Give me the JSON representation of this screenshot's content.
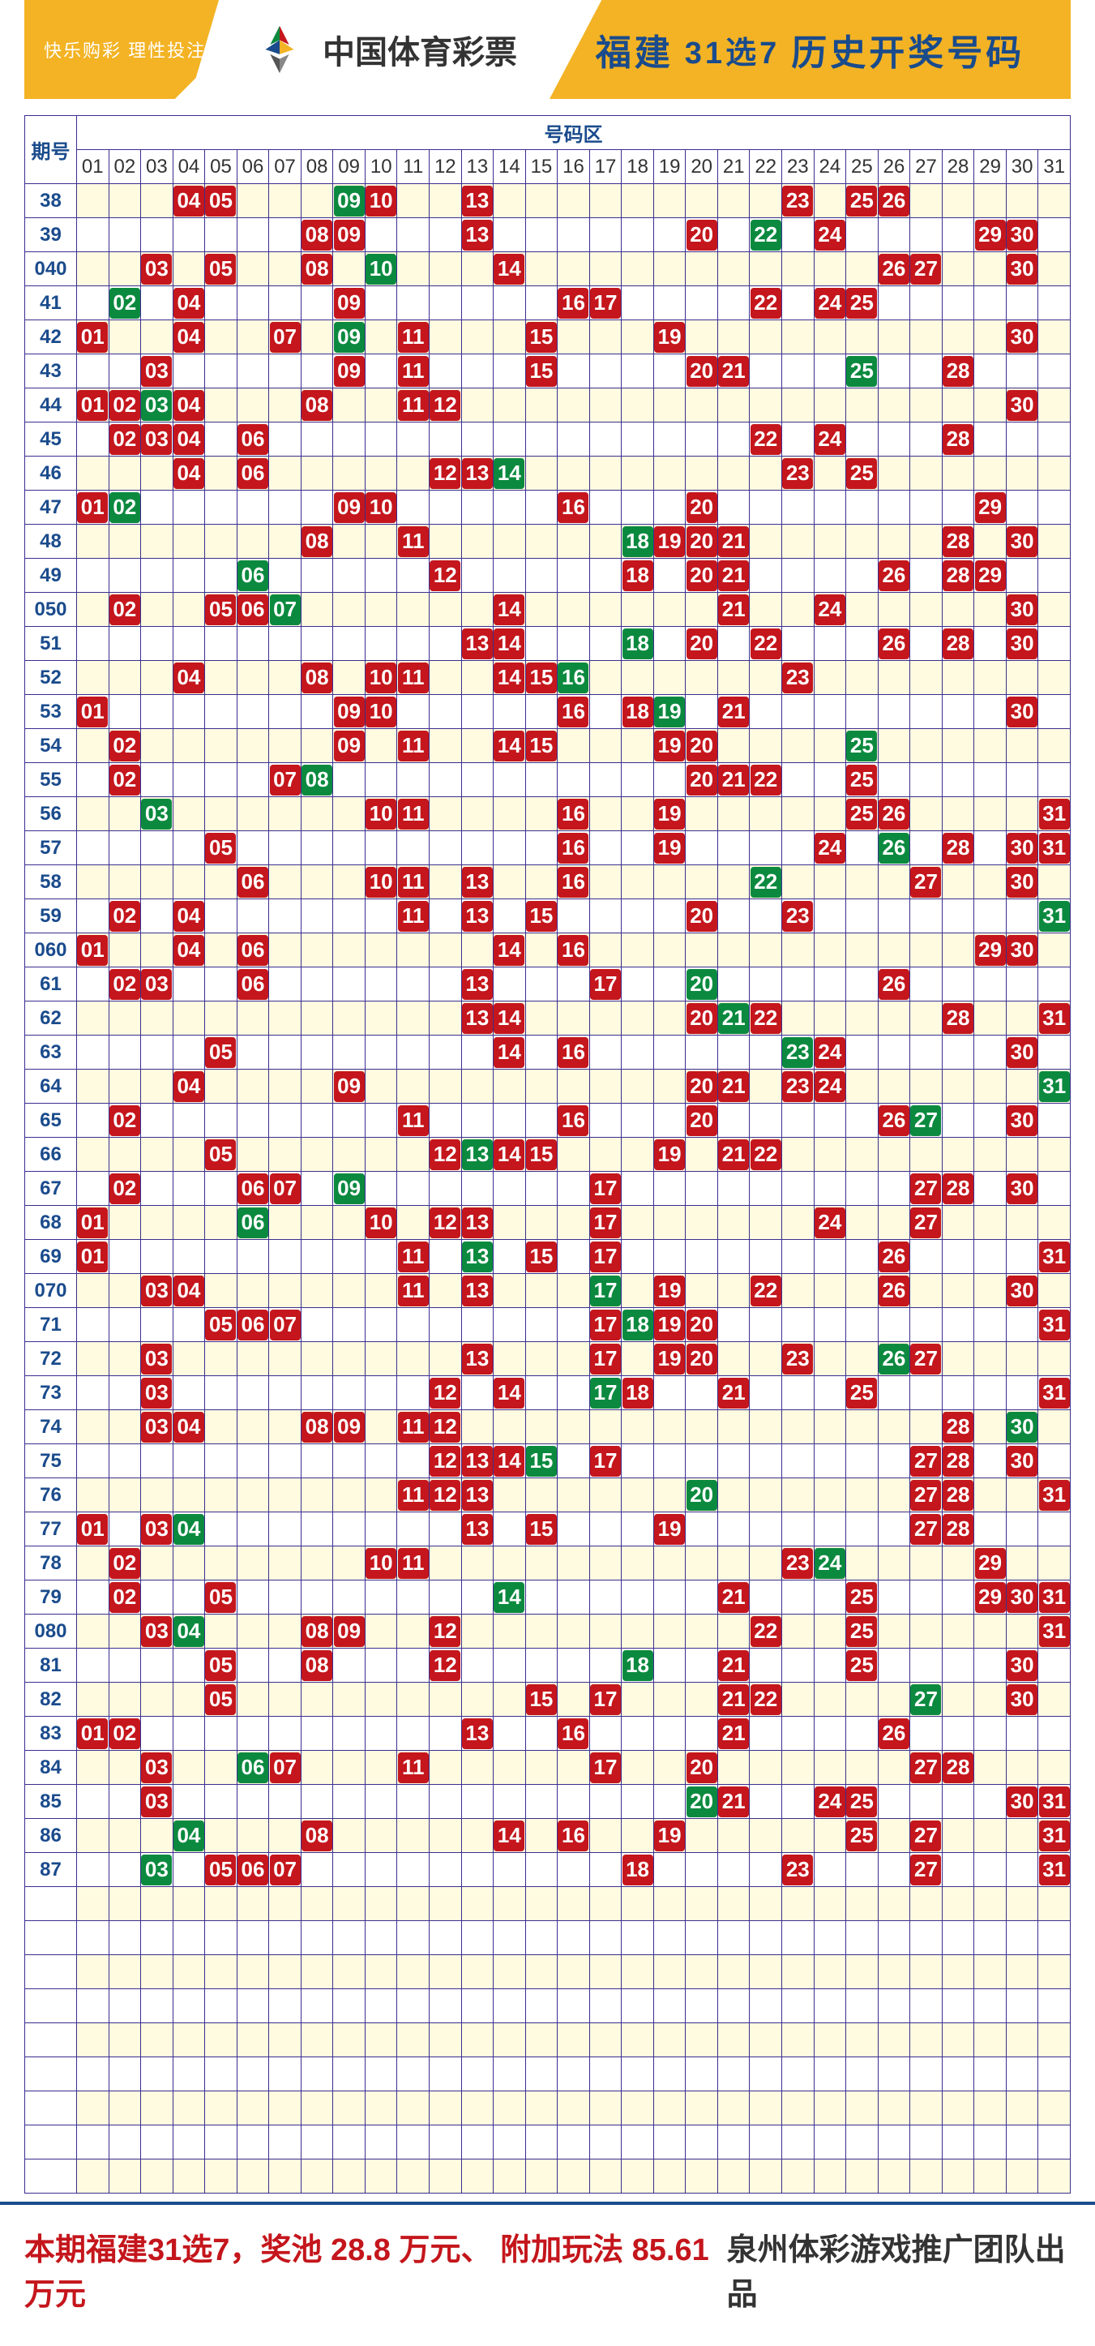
{
  "header": {
    "motto": "快乐购彩 理性投注",
    "brand": "中国体育彩票",
    "province": "福建",
    "game": "31选7",
    "title": "历史开奖号码"
  },
  "table": {
    "band_label": "号码区",
    "period_label": "期号",
    "num_columns": 31,
    "empty_tail_rows": 9,
    "colors": {
      "red": "#c4161c",
      "green": "#0b8a3f",
      "grid_border": "#3a2e8f",
      "row_odd_bg": "#fffbe0",
      "row_even_bg": "#ffffff",
      "period_text": "#1a4b8c",
      "header_bg": "#f3b324"
    },
    "rows": [
      {
        "period": "38",
        "red": [
          4,
          5,
          10,
          13,
          23,
          25,
          26
        ],
        "green": [
          9
        ]
      },
      {
        "period": "39",
        "red": [
          8,
          9,
          13,
          20,
          24,
          29,
          30
        ],
        "green": [
          22
        ]
      },
      {
        "period": "040",
        "red": [
          3,
          5,
          8,
          14,
          26,
          27,
          30
        ],
        "green": [
          10
        ]
      },
      {
        "period": "41",
        "red": [
          4,
          9,
          16,
          17,
          22,
          24,
          25
        ],
        "green": [
          2
        ]
      },
      {
        "period": "42",
        "red": [
          1,
          4,
          7,
          11,
          15,
          19,
          30
        ],
        "green": [
          9
        ]
      },
      {
        "period": "43",
        "red": [
          3,
          9,
          11,
          15,
          20,
          21,
          28
        ],
        "green": [
          25
        ]
      },
      {
        "period": "44",
        "red": [
          1,
          2,
          4,
          8,
          11,
          12,
          30
        ],
        "green": [
          3
        ]
      },
      {
        "period": "45",
        "red": [
          2,
          3,
          4,
          6,
          22,
          24,
          28
        ],
        "green": []
      },
      {
        "period": "46",
        "red": [
          4,
          6,
          12,
          13,
          23,
          25
        ],
        "green": [
          14
        ]
      },
      {
        "period": "47",
        "red": [
          1,
          9,
          10,
          16,
          20,
          29
        ],
        "green": [
          2
        ]
      },
      {
        "period": "48",
        "red": [
          8,
          11,
          19,
          20,
          21,
          28,
          30
        ],
        "green": [
          18
        ]
      },
      {
        "period": "49",
        "red": [
          12,
          18,
          20,
          21,
          26,
          28,
          29
        ],
        "green": [
          6
        ]
      },
      {
        "period": "050",
        "red": [
          2,
          5,
          6,
          14,
          21,
          24,
          30
        ],
        "green": [
          7
        ]
      },
      {
        "period": "51",
        "red": [
          13,
          14,
          20,
          22,
          26,
          28,
          30
        ],
        "green": [
          18
        ]
      },
      {
        "period": "52",
        "red": [
          4,
          8,
          10,
          11,
          14,
          15,
          23
        ],
        "green": [
          16
        ]
      },
      {
        "period": "53",
        "red": [
          1,
          9,
          10,
          16,
          18,
          21,
          30
        ],
        "green": [
          19
        ]
      },
      {
        "period": "54",
        "red": [
          2,
          9,
          11,
          14,
          15,
          19,
          20
        ],
        "green": [
          25
        ]
      },
      {
        "period": "55",
        "red": [
          2,
          7,
          20,
          21,
          22,
          25
        ],
        "green": [
          8
        ]
      },
      {
        "period": "56",
        "red": [
          10,
          11,
          16,
          19,
          25,
          26,
          31
        ],
        "green": [
          3
        ]
      },
      {
        "period": "57",
        "red": [
          5,
          16,
          19,
          24,
          28,
          30,
          31
        ],
        "green": [
          26
        ]
      },
      {
        "period": "58",
        "red": [
          6,
          10,
          11,
          13,
          16,
          27,
          30
        ],
        "green": [
          22
        ]
      },
      {
        "period": "59",
        "red": [
          2,
          4,
          11,
          13,
          15,
          20,
          23
        ],
        "green": [
          31
        ]
      },
      {
        "period": "060",
        "red": [
          1,
          4,
          6,
          14,
          16,
          29,
          30
        ],
        "green": []
      },
      {
        "period": "61",
        "red": [
          2,
          3,
          6,
          13,
          17,
          26
        ],
        "green": [
          20
        ]
      },
      {
        "period": "62",
        "red": [
          13,
          14,
          20,
          22,
          28,
          31
        ],
        "green": [
          21
        ]
      },
      {
        "period": "63",
        "red": [
          5,
          14,
          16,
          24,
          30
        ],
        "green": [
          23
        ]
      },
      {
        "period": "64",
        "red": [
          4,
          9,
          20,
          21,
          23,
          24
        ],
        "green": [
          31
        ]
      },
      {
        "period": "65",
        "red": [
          2,
          11,
          16,
          20,
          26,
          30
        ],
        "green": [
          27
        ]
      },
      {
        "period": "66",
        "red": [
          5,
          12,
          14,
          15,
          19,
          21,
          22
        ],
        "green": [
          13
        ]
      },
      {
        "period": "67",
        "red": [
          2,
          6,
          7,
          17,
          27,
          28,
          30
        ],
        "green": [
          9
        ]
      },
      {
        "period": "68",
        "red": [
          1,
          10,
          12,
          13,
          17,
          24,
          27
        ],
        "green": [
          6
        ]
      },
      {
        "period": "69",
        "red": [
          1,
          11,
          15,
          17,
          26,
          31
        ],
        "green": [
          13
        ]
      },
      {
        "period": "070",
        "red": [
          3,
          4,
          11,
          13,
          19,
          22,
          26,
          30
        ],
        "green": [
          17
        ]
      },
      {
        "period": "71",
        "red": [
          5,
          6,
          7,
          17,
          19,
          20,
          31
        ],
        "green": [
          18
        ]
      },
      {
        "period": "72",
        "red": [
          3,
          13,
          17,
          19,
          20,
          23,
          27
        ],
        "green": [
          26
        ]
      },
      {
        "period": "73",
        "red": [
          3,
          12,
          14,
          18,
          21,
          25,
          31
        ],
        "green": [
          17
        ]
      },
      {
        "period": "74",
        "red": [
          3,
          4,
          8,
          9,
          11,
          12,
          28
        ],
        "green": [
          30
        ]
      },
      {
        "period": "75",
        "red": [
          12,
          13,
          14,
          17,
          27,
          28,
          30
        ],
        "green": [
          15
        ]
      },
      {
        "period": "76",
        "red": [
          11,
          12,
          13,
          27,
          28,
          31
        ],
        "green": [
          20
        ]
      },
      {
        "period": "77",
        "red": [
          1,
          3,
          13,
          15,
          19,
          27,
          28
        ],
        "green": [
          4
        ]
      },
      {
        "period": "78",
        "red": [
          2,
          10,
          11,
          23,
          29
        ],
        "green": [
          24
        ]
      },
      {
        "period": "79",
        "red": [
          2,
          5,
          21,
          25,
          29,
          30,
          31
        ],
        "green": [
          14
        ]
      },
      {
        "period": "080",
        "red": [
          3,
          8,
          9,
          12,
          22,
          25,
          31
        ],
        "green": [
          4
        ]
      },
      {
        "period": "81",
        "red": [
          5,
          8,
          12,
          21,
          25,
          30
        ],
        "green": [
          18
        ]
      },
      {
        "period": "82",
        "red": [
          5,
          15,
          17,
          21,
          22,
          30
        ],
        "green": [
          27
        ]
      },
      {
        "period": "83",
        "red": [
          1,
          2,
          13,
          16,
          21,
          26
        ],
        "green": []
      },
      {
        "period": "84",
        "red": [
          3,
          7,
          11,
          17,
          20,
          27,
          28
        ],
        "green": [
          6
        ]
      },
      {
        "period": "85",
        "red": [
          3,
          21,
          24,
          25,
          30,
          31
        ],
        "green": [
          20
        ]
      },
      {
        "period": "86",
        "red": [
          8,
          14,
          16,
          19,
          25,
          27,
          31
        ],
        "green": [
          4
        ]
      },
      {
        "period": "87",
        "red": [
          5,
          6,
          7,
          18,
          23,
          27,
          31
        ],
        "green": [
          3
        ]
      }
    ]
  },
  "footer": {
    "prefix": "本期福建31选7，奖池",
    "pool": "28.8",
    "pool_unit": "万元、",
    "extra_label": "附加玩法",
    "extra": "85.61",
    "extra_unit": "万元",
    "credit": "泉州体彩游戏推广团队出品"
  }
}
